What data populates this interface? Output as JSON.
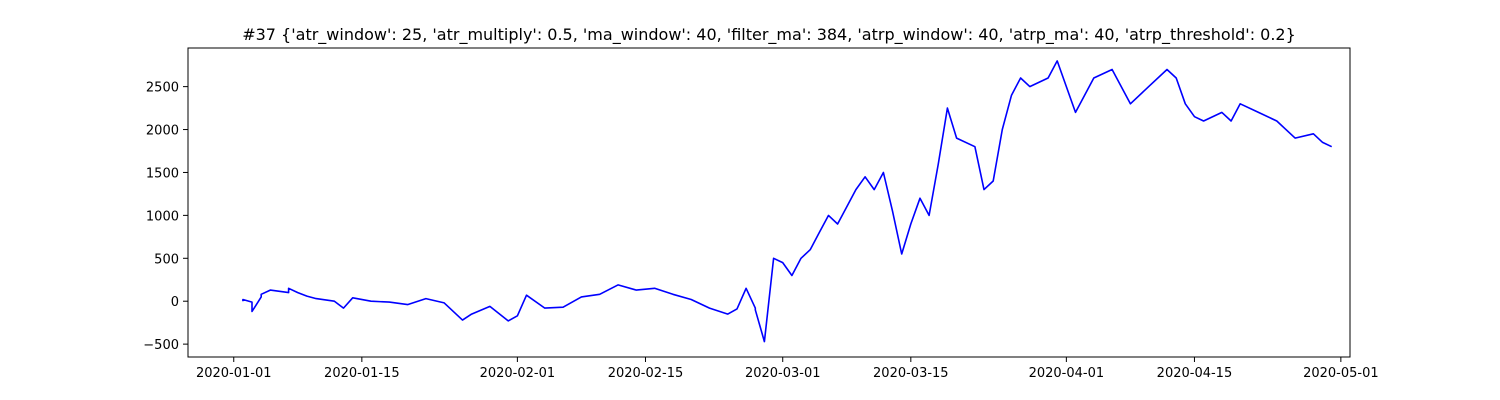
{
  "chart_data": {
    "type": "line",
    "title": "#37 {'atr_window': 25, 'atr_multiply': 0.5, 'ma_window': 40, 'filter_ma': 384, 'atrp_window': 40, 'atrp_ma': 40, 'atrp_threshold': 0.2}",
    "xlabel": "",
    "ylabel": "",
    "xlim": [
      "2019-12-27",
      "2020-05-02"
    ],
    "ylim": [
      -650,
      2950
    ],
    "x_ticks": [
      "2020-01-01",
      "2020-01-15",
      "2020-02-01",
      "2020-02-15",
      "2020-03-01",
      "2020-03-15",
      "2020-04-01",
      "2020-04-15",
      "2020-05-01"
    ],
    "y_ticks": [
      -500,
      0,
      500,
      1000,
      1500,
      2000,
      2500
    ],
    "grid": false,
    "line_color": "#0000ff",
    "series": [
      {
        "x": [
          "2020-01-02",
          "2020-01-02",
          "2020-01-03",
          "2020-01-03",
          "2020-01-04",
          "2020-01-04",
          "2020-01-05",
          "2020-01-07",
          "2020-01-07",
          "2020-01-08",
          "2020-01-09",
          "2020-01-10",
          "2020-01-12",
          "2020-01-13",
          "2020-01-14",
          "2020-01-16",
          "2020-01-18",
          "2020-01-20",
          "2020-01-22",
          "2020-01-24",
          "2020-01-26",
          "2020-01-27",
          "2020-01-29",
          "2020-01-31",
          "2020-02-01",
          "2020-02-02",
          "2020-02-04",
          "2020-02-06",
          "2020-02-08",
          "2020-02-10",
          "2020-02-12",
          "2020-02-14",
          "2020-02-16",
          "2020-02-18",
          "2020-02-20",
          "2020-02-22",
          "2020-02-24",
          "2020-02-25",
          "2020-02-26",
          "2020-02-27",
          "2020-02-27",
          "2020-02-28",
          "2020-02-29",
          "2020-03-01",
          "2020-03-02",
          "2020-03-03",
          "2020-03-04",
          "2020-03-05",
          "2020-03-06",
          "2020-03-07",
          "2020-03-08",
          "2020-03-09",
          "2020-03-10",
          "2020-03-11",
          "2020-03-12",
          "2020-03-13",
          "2020-03-14",
          "2020-03-15",
          "2020-03-16",
          "2020-03-17",
          "2020-03-18",
          "2020-03-19",
          "2020-03-20",
          "2020-03-22",
          "2020-03-23",
          "2020-03-24",
          "2020-03-25",
          "2020-03-26",
          "2020-03-27",
          "2020-03-28",
          "2020-03-30",
          "2020-03-31",
          "2020-04-02",
          "2020-04-04",
          "2020-04-06",
          "2020-04-08",
          "2020-04-10",
          "2020-04-12",
          "2020-04-13",
          "2020-04-14",
          "2020-04-15",
          "2020-04-16",
          "2020-04-18",
          "2020-04-19",
          "2020-04-20",
          "2020-04-22",
          "2020-04-24",
          "2020-04-26",
          "2020-04-28",
          "2020-04-29",
          "2020-04-30"
        ],
        "y": [
          0,
          20,
          -10,
          -120,
          50,
          80,
          130,
          100,
          150,
          100,
          60,
          30,
          0,
          -80,
          40,
          0,
          -10,
          -40,
          30,
          -20,
          -220,
          -150,
          -60,
          -230,
          -170,
          70,
          -80,
          -70,
          50,
          80,
          190,
          130,
          150,
          80,
          20,
          -80,
          -150,
          -90,
          150,
          -80,
          -100,
          -470,
          500,
          450,
          300,
          500,
          600,
          800,
          1000,
          900,
          1100,
          1300,
          1450,
          1300,
          1500,
          1050,
          550,
          900,
          1200,
          1000,
          1600,
          2250,
          1900,
          1800,
          1300,
          1400,
          2000,
          2400,
          2600,
          2500,
          2600,
          2800,
          2200,
          2600,
          2700,
          2300,
          2500,
          2700,
          2600,
          2300,
          2150,
          2100,
          2200,
          2100,
          2300,
          2200,
          2100,
          1900,
          1950,
          1850,
          1800
        ]
      }
    ]
  }
}
